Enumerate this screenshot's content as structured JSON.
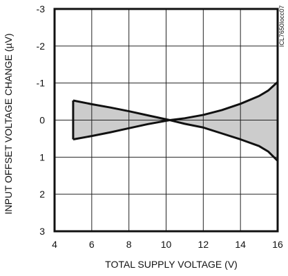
{
  "chart_data": {
    "type": "area",
    "title": "",
    "xlabel": "TOTAL SUPPLY VOLTAGE (V)",
    "ylabel": "INPUT OFFSET VOLTAGE CHANGE (µV)",
    "figure_id": "ICL7650Iocc07",
    "xlim": [
      4,
      16
    ],
    "ylim": [
      -3,
      3
    ],
    "y_inverted": true,
    "grid": true,
    "x_ticks": [
      4,
      6,
      8,
      10,
      12,
      14,
      16
    ],
    "x_tick_labels": [
      "4",
      "6",
      "8",
      "10",
      "12",
      "14",
      "16"
    ],
    "y_ticks": [
      -3,
      -2,
      -1,
      0,
      1,
      2,
      3
    ],
    "y_tick_labels": [
      "-3",
      "-2",
      "-1",
      "0",
      "1",
      "2",
      "3"
    ],
    "series": [
      {
        "x": [
          5.0,
          6.0,
          7.0,
          8.0,
          9.0,
          10.2,
          11.0,
          12.0,
          13.0,
          14.0,
          15.0,
          15.5,
          16.0
        ],
        "y": [
          -0.53,
          -0.43,
          -0.34,
          -0.24,
          -0.13,
          0.0,
          -0.05,
          -0.14,
          -0.27,
          -0.44,
          -0.65,
          -0.8,
          -1.03
        ]
      },
      {
        "x": [
          5.0,
          6.0,
          7.0,
          8.0,
          9.0,
          10.2,
          11.0,
          12.0,
          13.0,
          14.0,
          15.0,
          15.5,
          16.0
        ],
        "y": [
          0.52,
          0.43,
          0.33,
          0.22,
          0.11,
          0.0,
          0.1,
          0.2,
          0.36,
          0.52,
          0.7,
          0.85,
          1.1
        ]
      }
    ],
    "fill_color": "#cccccc",
    "line_color": "#111111"
  }
}
